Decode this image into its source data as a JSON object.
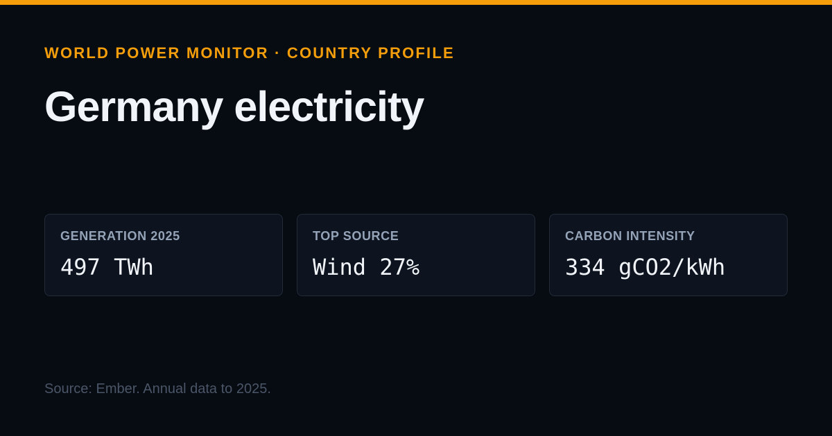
{
  "header": {
    "eyebrow": "WORLD POWER MONITOR · COUNTRY PROFILE",
    "title": "Germany electricity"
  },
  "stats": [
    {
      "label": "GENERATION 2025",
      "value": "497 TWh"
    },
    {
      "label": "TOP SOURCE",
      "value": "Wind 27%"
    },
    {
      "label": "CARBON INTENSITY",
      "value": "334 gCO2/kWh"
    }
  ],
  "footer": {
    "source": "Source: Ember. Annual data to 2025."
  },
  "colors": {
    "accent": "#f59e0b",
    "background": "#070b12",
    "card": "#0e141f",
    "card_border": "#232b39",
    "text_primary": "#f1f5f9",
    "text_muted": "#94a3b8",
    "text_footer": "#4b5668"
  }
}
